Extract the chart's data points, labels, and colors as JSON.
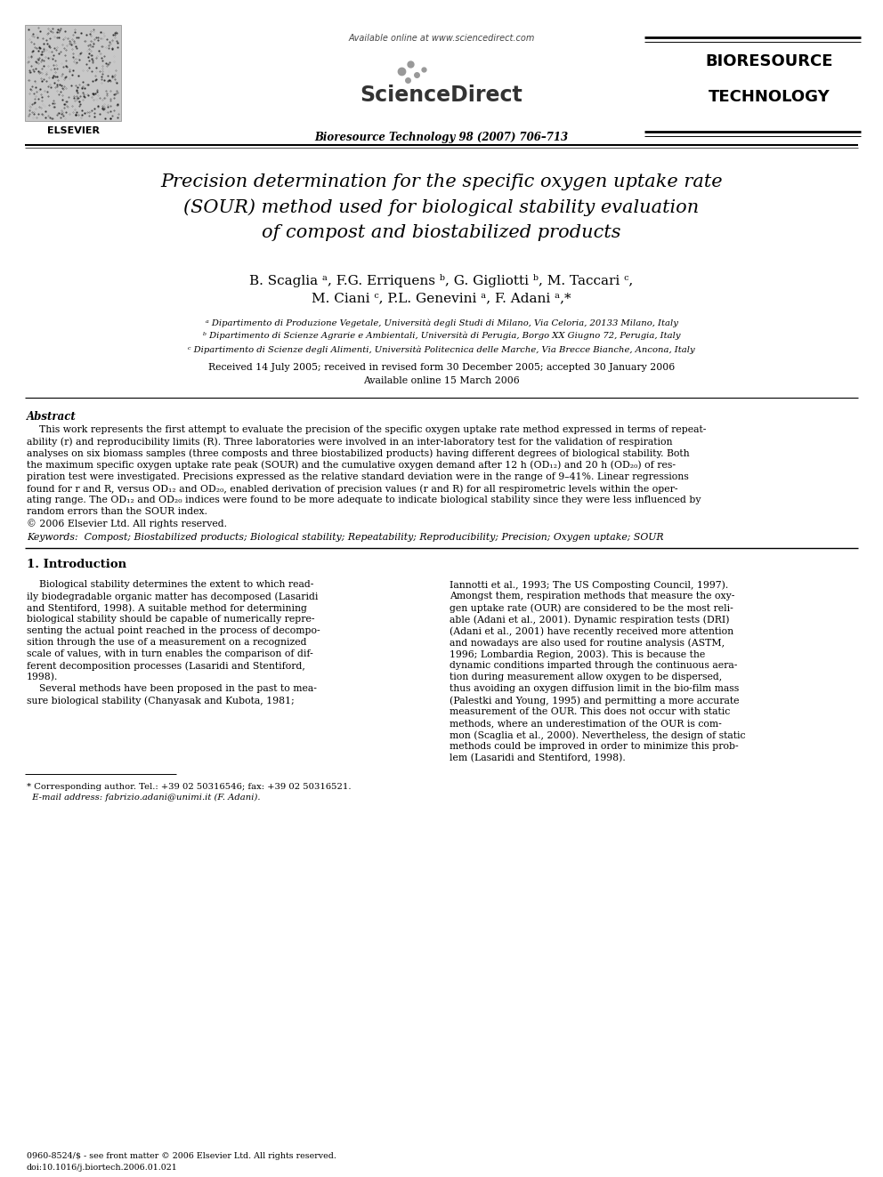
{
  "background_color": "#ffffff",
  "header": {
    "available_online": "Available online at www.sciencedirect.com",
    "journal": "Bioresource Technology 98 (2007) 706–713",
    "elsevier_text": "ELSEVIER",
    "sciencedirect_text": "ScienceDirect",
    "bioresource_line1": "BIORESOURCE",
    "bioresource_line2": "TECHNOLOGY"
  },
  "title": "Precision determination for the specific oxygen uptake rate\n(SOUR) method used for biological stability evaluation\nof compost and biostabilized products",
  "authors_line1": "B. Scaglia ᵃ, F.G. Erriquens ᵇ, G. Gigliotti ᵇ, M. Taccari ᶜ,",
  "authors_line2": "M. Ciani ᶜ, P.L. Genevini ᵃ, F. Adani ᵃ,*",
  "affil_a": "ᵃ Dipartimento di Produzione Vegetale, Università degli Studi di Milano, Via Celoria, 20133 Milano, Italy",
  "affil_b": "ᵇ Dipartimento di Scienze Agrarie e Ambientali, Università di Perugia, Borgo XX Giugno 72, Perugia, Italy",
  "affil_c": "ᶜ Dipartimento di Scienze degli Alimenti, Università Politecnica delle Marche, Via Brecce Bianche, Ancona, Italy",
  "received": "Received 14 July 2005; received in revised form 30 December 2005; accepted 30 January 2006",
  "available_online_date": "Available online 15 March 2006",
  "abstract_label": "Abstract",
  "abstract_lines": [
    "    This work represents the first attempt to evaluate the precision of the specific oxygen uptake rate method expressed in terms of repeat-",
    "ability (r) and reproducibility limits (R). Three laboratories were involved in an inter-laboratory test for the validation of respiration",
    "analyses on six biomass samples (three composts and three biostabilized products) having different degrees of biological stability. Both",
    "the maximum specific oxygen uptake rate peak (SOUR) and the cumulative oxygen demand after 12 h (OD₁₂) and 20 h (OD₂₀) of res-",
    "piration test were investigated. Precisions expressed as the relative standard deviation were in the range of 9–41%. Linear regressions",
    "found for r and R, versus OD₁₂ and OD₂₀, enabled derivation of precision values (r and R) for all respirometric levels within the oper-",
    "ating range. The OD₁₂ and OD₂₀ indices were found to be more adequate to indicate biological stability since they were less influenced by",
    "random errors than the SOUR index.",
    "© 2006 Elsevier Ltd. All rights reserved."
  ],
  "keywords_line": "Keywords:  Compost; Biostabilized products; Biological stability; Repeatability; Reproducibility; Precision; Oxygen uptake; SOUR",
  "intro_heading": "1. Introduction",
  "intro_col1_lines": [
    "    Biological stability determines the extent to which read-",
    "ily biodegradable organic matter has decomposed (Lasaridi",
    "and Stentiford, 1998). A suitable method for determining",
    "biological stability should be capable of numerically repre-",
    "senting the actual point reached in the process of decompo-",
    "sition through the use of a measurement on a recognized",
    "scale of values, with in turn enables the comparison of dif-",
    "ferent decomposition processes (Lasaridi and Stentiford,",
    "1998).",
    "    Several methods have been proposed in the past to mea-",
    "sure biological stability (Chanyasak and Kubota, 1981;"
  ],
  "intro_col2_lines": [
    "Iannotti et al., 1993; The US Composting Council, 1997).",
    "Amongst them, respiration methods that measure the oxy-",
    "gen uptake rate (OUR) are considered to be the most reli-",
    "able (Adani et al., 2001). Dynamic respiration tests (DRI)",
    "(Adani et al., 2001) have recently received more attention",
    "and nowadays are also used for routine analysis (ASTM,",
    "1996; Lombardia Region, 2003). This is because the",
    "dynamic conditions imparted through the continuous aera-",
    "tion during measurement allow oxygen to be dispersed,",
    "thus avoiding an oxygen diffusion limit in the bio-film mass",
    "(Palestki and Young, 1995) and permitting a more accurate",
    "measurement of the OUR. This does not occur with static",
    "methods, where an underestimation of the OUR is com-",
    "mon (Scaglia et al., 2000). Nevertheless, the design of static",
    "methods could be improved in order to minimize this prob-",
    "lem (Lasaridi and Stentiford, 1998)."
  ],
  "footnote_line1": "* Corresponding author. Tel.: +39 02 50316546; fax: +39 02 50316521.",
  "footnote_line2": "  E-mail address: fabrizio.adani@unimi.it (F. Adani).",
  "footer_line1": "0960-8524/$ - see front matter © 2006 Elsevier Ltd. All rights reserved.",
  "footer_line2": "doi:10.1016/j.biortech.2006.01.021"
}
